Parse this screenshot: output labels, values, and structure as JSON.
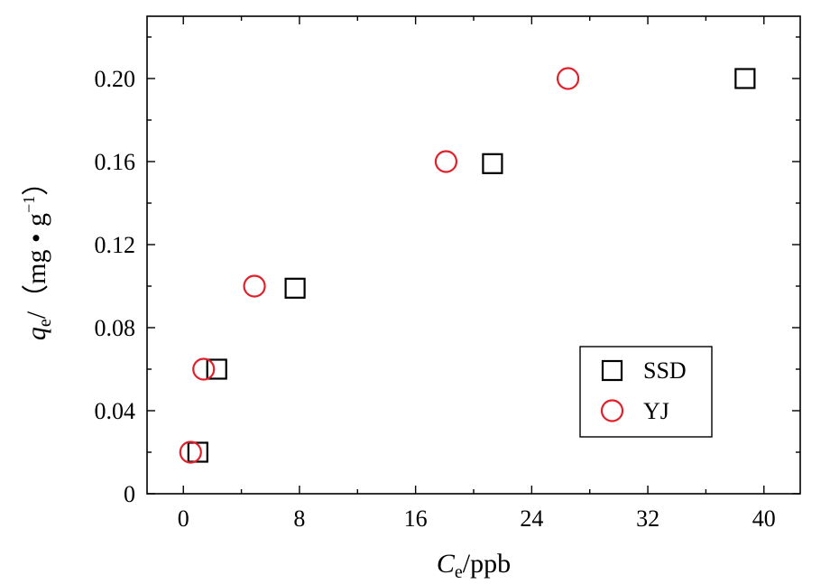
{
  "chart_data": {
    "type": "scatter",
    "xlabel": "C",
    "xlabel_sub": "e",
    "xlabel_unit": "/ppb",
    "ylabel": "q",
    "ylabel_sub": "e",
    "ylabel_unit_open": "/（mg • g",
    "ylabel_unit_sup": "−1",
    "ylabel_unit_close": "）",
    "xlim": [
      -2.5,
      42.5
    ],
    "ylim": [
      0,
      0.23
    ],
    "x_ticks": [
      0,
      8,
      16,
      24,
      32,
      40
    ],
    "x_tick_labels": [
      "0",
      "8",
      "16",
      "24",
      "32",
      "40"
    ],
    "y_ticks": [
      0,
      0.04,
      0.08,
      0.12,
      0.16,
      0.2
    ],
    "y_tick_labels": [
      "0",
      "0.04",
      "0.08",
      "0.12",
      "0.16",
      "0.20"
    ],
    "grid": false,
    "legend_position": "bottom-right",
    "series": [
      {
        "name": "SSD",
        "marker": "square",
        "color": "#000000",
        "points": [
          {
            "x": 1.0,
            "y": 0.02
          },
          {
            "x": 2.3,
            "y": 0.06
          },
          {
            "x": 7.7,
            "y": 0.099
          },
          {
            "x": 21.3,
            "y": 0.159
          },
          {
            "x": 38.7,
            "y": 0.2
          }
        ]
      },
      {
        "name": "YJ",
        "marker": "circle",
        "color": "#e0202a",
        "points": [
          {
            "x": 0.5,
            "y": 0.02
          },
          {
            "x": 1.4,
            "y": 0.06
          },
          {
            "x": 4.9,
            "y": 0.1
          },
          {
            "x": 18.1,
            "y": 0.16
          },
          {
            "x": 26.5,
            "y": 0.2
          }
        ]
      }
    ]
  }
}
